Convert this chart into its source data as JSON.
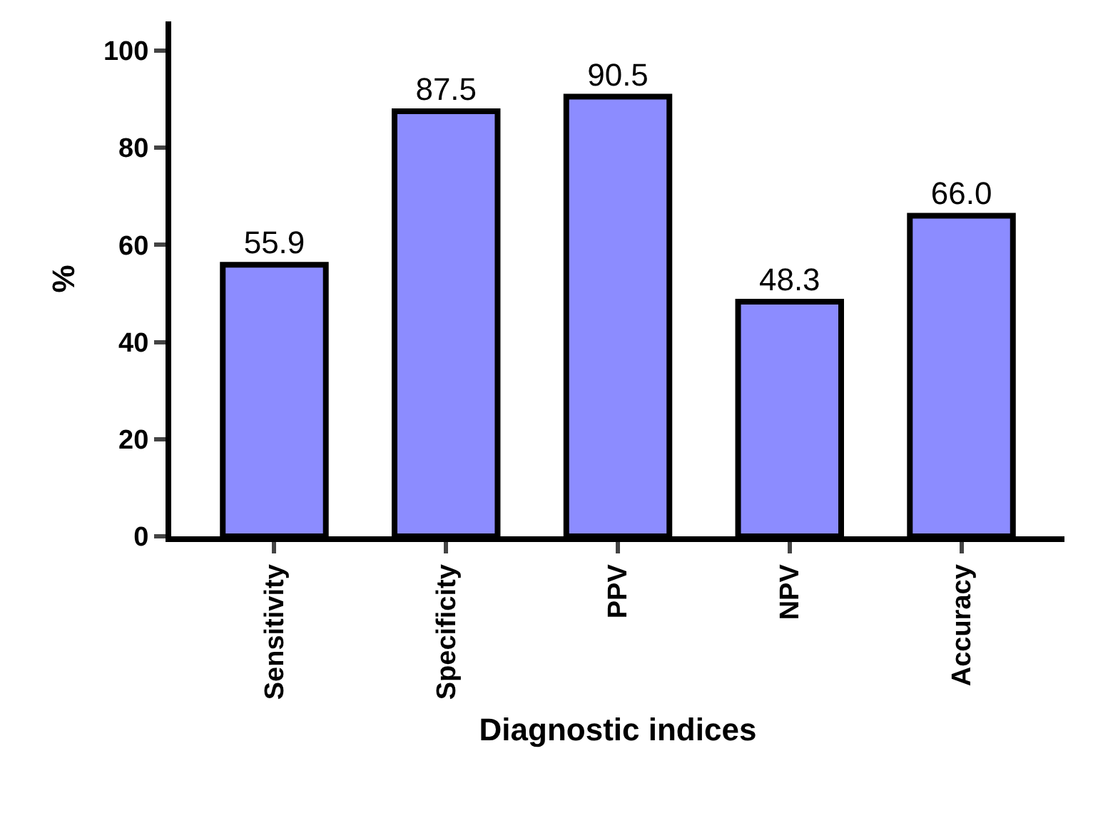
{
  "chart_data": {
    "type": "bar",
    "xlabel": "Diagnostic indices",
    "ylabel": "%",
    "categories": [
      "Sensitivity",
      "Specificity",
      "PPV",
      "NPV",
      "Accuracy"
    ],
    "values": [
      55.9,
      87.5,
      90.5,
      48.3,
      66.0
    ],
    "value_labels": [
      "55.9",
      "87.5",
      "90.5",
      "48.3",
      "66.0"
    ],
    "color": "#8c8cff",
    "ylim": [
      0,
      106
    ],
    "yticks": [
      0,
      20,
      40,
      60,
      80,
      100
    ],
    "legend": false
  }
}
